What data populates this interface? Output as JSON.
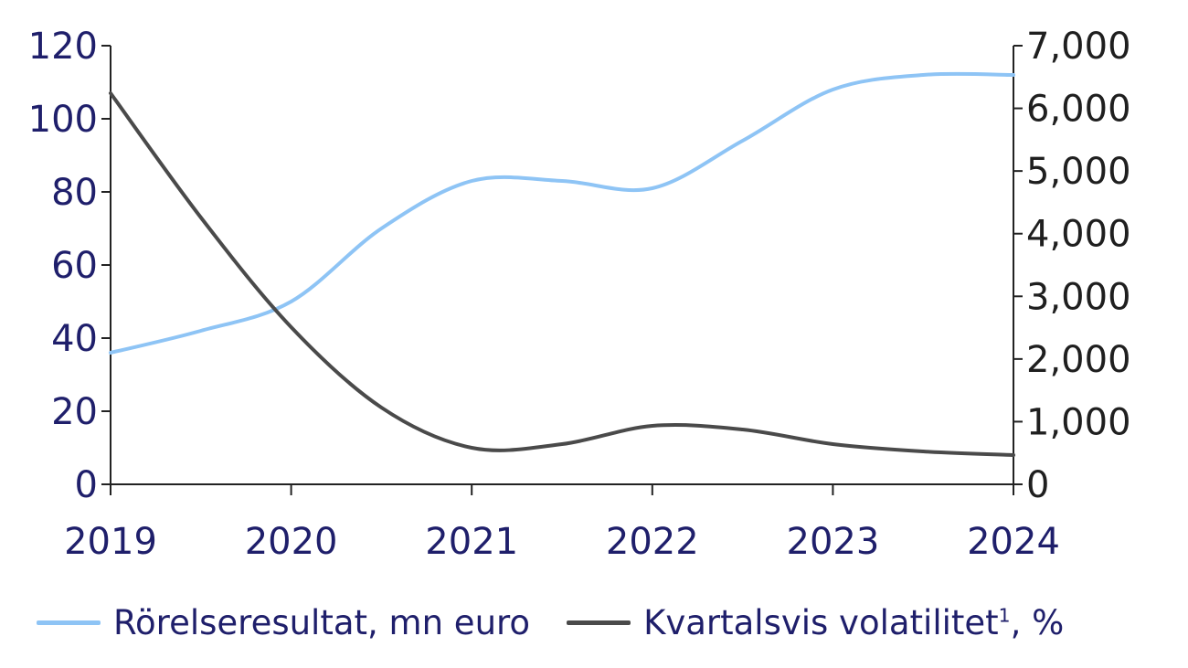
{
  "chart_data": {
    "type": "line",
    "title": "",
    "x": [
      "2019",
      "2020",
      "2021",
      "2022",
      "2023",
      "2024"
    ],
    "left_axis": {
      "ylim": [
        0,
        120
      ],
      "ticks": [
        "0",
        "20",
        "40",
        "60",
        "80",
        "100",
        "120"
      ]
    },
    "right_axis": {
      "ylim": [
        0,
        7000
      ],
      "ticks": [
        "0",
        "1,000",
        "2,000",
        "3,000",
        "4,000",
        "5,000",
        "6,000",
        "7,000"
      ]
    },
    "series": [
      {
        "name": "Rörelseresultat, mn euro",
        "axis": "left",
        "color": "#8ec4f5",
        "x": [
          2019.0,
          2019.5,
          2020.0,
          2020.5,
          2021.0,
          2021.5,
          2022.0,
          2022.5,
          2023.0,
          2023.5,
          2024.0
        ],
        "values": [
          36,
          42,
          50,
          70,
          83,
          83,
          81,
          94,
          108,
          112,
          112
        ]
      },
      {
        "name": "Kvartalsvis volatilitet",
        "name_sup": "1",
        "name_suffix": ", %",
        "axis": "left",
        "color": "#4a4a4a",
        "x": [
          2019.0,
          2019.5,
          2020.0,
          2020.5,
          2021.0,
          2021.5,
          2022.0,
          2022.5,
          2023.0,
          2023.5,
          2024.0
        ],
        "values": [
          107,
          73,
          43,
          21,
          10,
          11,
          16,
          15,
          11,
          9,
          8
        ]
      }
    ],
    "grid": false
  }
}
